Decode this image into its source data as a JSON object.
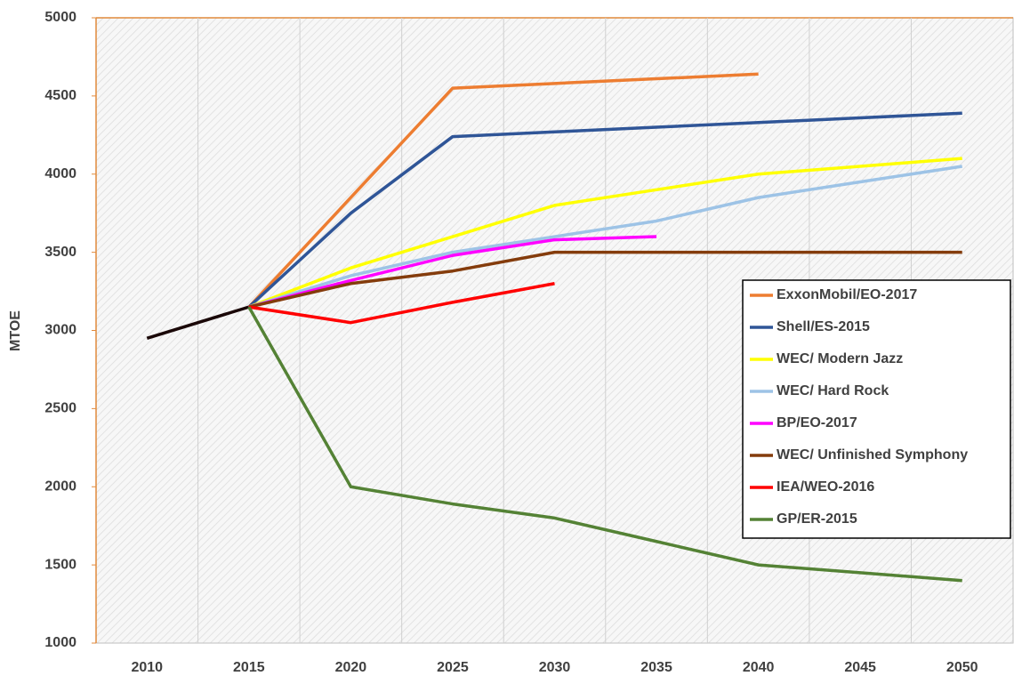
{
  "chart_data": {
    "type": "line",
    "y_label": "MTOE",
    "categories": [
      "2010",
      "2015",
      "2020",
      "2025",
      "2030",
      "2035",
      "2040",
      "2045",
      "2050"
    ],
    "ylim": [
      1000,
      5000
    ],
    "yticks": [
      1000,
      1500,
      2000,
      2500,
      3000,
      3500,
      4000,
      4500,
      5000
    ],
    "grid": true,
    "legend": "right",
    "series": [
      {
        "color": "#1a0808",
        "values": [
          2950,
          3150,
          null,
          null,
          null,
          null,
          null,
          null,
          null
        ]
      },
      {
        "name": "ExxonMobil/EO-2017",
        "color": "#ed7d31",
        "values": [
          null,
          3150,
          3850,
          4550,
          4580,
          4610,
          4640,
          null,
          null
        ]
      },
      {
        "name": "Shell/ES-2015",
        "color": "#2f5597",
        "values": [
          null,
          3150,
          3750,
          4240,
          4270,
          4300,
          4330,
          4360,
          4390
        ]
      },
      {
        "name": "WEC/ Modern Jazz",
        "color": "#ffff00",
        "values": [
          null,
          3150,
          3400,
          3600,
          3800,
          3900,
          4000,
          4050,
          4100
        ]
      },
      {
        "name": "WEC/ Hard Rock",
        "color": "#9dc3e6",
        "values": [
          null,
          3150,
          3350,
          3500,
          3600,
          3700,
          3850,
          3950,
          4050
        ]
      },
      {
        "name": "BP/EO-2017",
        "color": "#ff00ff",
        "values": [
          null,
          3150,
          3320,
          3480,
          3580,
          3600,
          null,
          null,
          null
        ]
      },
      {
        "name": "WEC/ Unfinished Symphony",
        "color": "#843c0c",
        "values": [
          null,
          3150,
          3300,
          3380,
          3500,
          3500,
          3500,
          3500,
          3500
        ]
      },
      {
        "name": "IEA/WEO-2016",
        "color": "#ff0000",
        "values": [
          null,
          3150,
          3050,
          3180,
          3300,
          null,
          null,
          null,
          null
        ]
      },
      {
        "name": "GP/ER-2015",
        "color": "#548235",
        "values": [
          null,
          3150,
          2000,
          1890,
          1800,
          1650,
          1500,
          1450,
          1400
        ]
      }
    ]
  }
}
